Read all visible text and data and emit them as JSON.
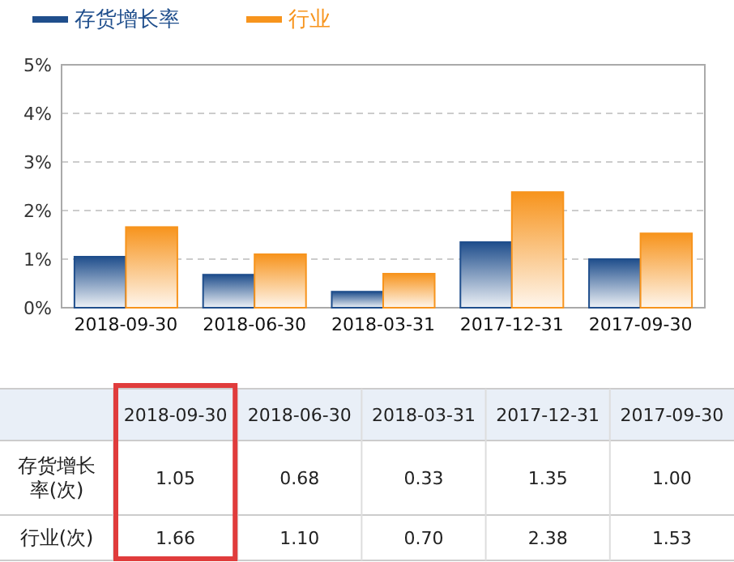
{
  "chart_data": {
    "type": "bar",
    "categories": [
      "2018-09-30",
      "2018-06-30",
      "2018-03-31",
      "2017-12-31",
      "2017-09-30"
    ],
    "series": [
      {
        "name": "存货增长率",
        "color": "#1f4e8c",
        "values": [
          1.05,
          0.68,
          0.33,
          1.35,
          1.0
        ],
        "value_labels": [
          "1.05",
          "0.68",
          "0.33",
          "1.35",
          "1.00"
        ]
      },
      {
        "name": "行业",
        "color": "#f7941d",
        "values": [
          1.66,
          1.1,
          0.7,
          2.38,
          1.53
        ],
        "value_labels": [
          "1.66",
          "1.10",
          "0.70",
          "2.38",
          "1.53"
        ]
      }
    ],
    "ylim": [
      0,
      5
    ],
    "yticks": [
      {
        "value": 0,
        "label": "0%"
      },
      {
        "value": 1,
        "label": "1%"
      },
      {
        "value": 2,
        "label": "2%"
      },
      {
        "value": 3,
        "label": "3%"
      },
      {
        "value": 4,
        "label": "4%"
      },
      {
        "value": 5,
        "label": "5%"
      }
    ],
    "grid": "y",
    "legend": "top left",
    "annotations": [
      "存货增长率(次)",
      "行业(次)"
    ]
  }
}
